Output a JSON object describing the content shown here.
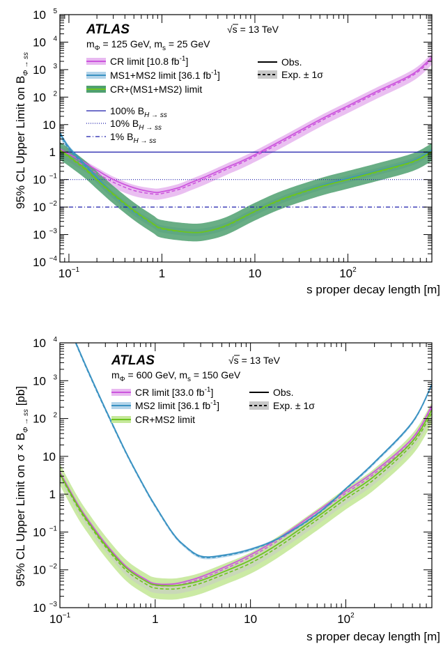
{
  "colors": {
    "cr": "#cc55dd",
    "cr_band": "#e8b8f0",
    "ms": "#3a92c2",
    "ms_band": "#b3d4ea",
    "comb": "#6ec420",
    "comb_band_top": "#4fa070",
    "comb_band_bottom": "#c5e89a",
    "exp_band": "#c8c8c8",
    "ref": "#1a1aaa"
  },
  "top": {
    "atlas": "ATLAS",
    "energy": "√s = 13 TeV",
    "masses": "m",
    "masses_parts": [
      "m",
      "Φ",
      " = 125 GeV, m",
      "s",
      " = 25 GeV"
    ],
    "legend": {
      "cr": "CR limit [10.8 fb",
      "cr_end": "]",
      "ms": "MS1+MS2 limit [36.1 fb",
      "ms_end": "]",
      "comb": "CR+(MS1+MS2) limit",
      "obs": "Obs.",
      "exp": "Exp. ± 1σ",
      "ref100": "100% B",
      "ref10": "10% B",
      "ref1": "1% B",
      "ref_sub": "H → ss"
    },
    "ylabel_main": "95% CL Upper Limit on B",
    "ylabel_sub": "Φ → ss",
    "xlabel": "s proper decay length [m]"
  },
  "bottom": {
    "atlas": "ATLAS",
    "energy": "√s = 13 TeV",
    "masses_parts": [
      "m",
      "Φ",
      " = 600 GeV, m",
      "s",
      " = 150 GeV"
    ],
    "legend": {
      "cr": "CR limit [33.0 fb",
      "cr_end": "]",
      "ms": "MS2 limit [36.1 fb",
      "ms_end": "]",
      "comb": "CR+MS2 limit",
      "obs": "Obs.",
      "exp": "Exp. ± 1σ"
    },
    "ylabel_main": "95% CL Upper Limit on σ × B",
    "ylabel_sub": "Φ → ss",
    "ylabel_end": " [pb]",
    "xlabel": "s proper decay length [m]"
  },
  "chart_data": [
    {
      "type": "line",
      "title": "",
      "xlabel": "s proper decay length [m]",
      "ylabel": "95% CL Upper Limit on B_Φ→ss",
      "x_scale": "log",
      "y_scale": "log",
      "xlim": [
        0.08,
        800
      ],
      "ylim": [
        0.0001,
        100000
      ],
      "x_ticks": [
        {
          "v": 0.1,
          "m": "10",
          "e": "−1"
        },
        {
          "v": 1,
          "m": "1"
        },
        {
          "v": 10,
          "m": "10"
        },
        {
          "v": 100,
          "m": "10",
          "e": "2"
        }
      ],
      "y_ticks": [
        {
          "v": 0.0001,
          "m": "10",
          "e": "−4"
        },
        {
          "v": 0.001,
          "m": "10",
          "e": "−3"
        },
        {
          "v": 0.01,
          "m": "10",
          "e": "−2"
        },
        {
          "v": 0.1,
          "m": "10",
          "e": "−1"
        },
        {
          "v": 1,
          "m": "1"
        },
        {
          "v": 10,
          "m": "10"
        },
        {
          "v": 100,
          "m": "10",
          "e": "2"
        },
        {
          "v": 1000,
          "m": "10",
          "e": "3"
        },
        {
          "v": 10000,
          "m": "10",
          "e": "4"
        },
        {
          "v": 100000,
          "m": "10",
          "e": "5"
        }
      ],
      "reference_lines": [
        {
          "name": "100% B_H→ss",
          "y": 1,
          "style": "solid"
        },
        {
          "name": "10% B_H→ss",
          "y": 0.1,
          "style": "dotted"
        },
        {
          "name": "1% B_H→ss",
          "y": 0.01,
          "style": "dashdot"
        }
      ],
      "series": [
        {
          "name": "CR limit [10.8 fb^-1]",
          "key": "cr",
          "band_factor": 1.6,
          "x": [
            0.08,
            0.1,
            0.15,
            0.2,
            0.3,
            0.5,
            0.8,
            1,
            1.5,
            2,
            3,
            5,
            7,
            10,
            20,
            50,
            100,
            200,
            500,
            800
          ],
          "obs": [
            1.3,
            0.85,
            0.4,
            0.22,
            0.1,
            0.05,
            0.035,
            0.036,
            0.05,
            0.075,
            0.13,
            0.28,
            0.45,
            0.8,
            2.8,
            15,
            48,
            155,
            700,
            2800
          ],
          "exp": [
            1.1,
            0.7,
            0.3,
            0.17,
            0.08,
            0.04,
            0.03,
            0.031,
            0.043,
            0.063,
            0.11,
            0.24,
            0.39,
            0.7,
            2.4,
            13,
            42,
            135,
            620,
            2400
          ]
        },
        {
          "name": "MS1+MS2 limit [36.1 fb^-1]",
          "key": "ms",
          "band_factor": 1.35,
          "x": [
            0.08,
            0.1,
            0.15,
            0.2,
            0.3,
            0.5,
            0.8,
            1,
            2,
            3,
            5,
            10,
            20,
            50,
            100,
            200,
            500,
            800
          ],
          "obs": [
            5,
            1.5,
            0.35,
            0.12,
            0.03,
            0.007,
            0.0025,
            0.0017,
            0.0012,
            0.0013,
            0.0022,
            0.007,
            0.02,
            0.058,
            0.11,
            0.2,
            0.48,
            1.2
          ],
          "exp": [
            4.5,
            1.3,
            0.3,
            0.1,
            0.027,
            0.0065,
            0.0024,
            0.0016,
            0.0012,
            0.0013,
            0.0021,
            0.0068,
            0.019,
            0.055,
            0.105,
            0.19,
            0.45,
            1.1
          ]
        },
        {
          "name": "CR+(MS1+MS2) limit",
          "key": "comb",
          "band_factor": 2.1,
          "x": [
            0.08,
            0.1,
            0.15,
            0.2,
            0.3,
            0.5,
            0.8,
            1,
            2,
            3,
            5,
            10,
            20,
            50,
            100,
            200,
            500,
            800
          ],
          "obs": [
            1.2,
            0.7,
            0.25,
            0.1,
            0.03,
            0.0075,
            0.0025,
            0.0017,
            0.0012,
            0.0013,
            0.0022,
            0.007,
            0.02,
            0.055,
            0.1,
            0.19,
            0.45,
            1.05
          ],
          "exp": [
            1.1,
            0.65,
            0.23,
            0.095,
            0.028,
            0.007,
            0.0024,
            0.0016,
            0.0012,
            0.0013,
            0.0021,
            0.0068,
            0.019,
            0.053,
            0.098,
            0.18,
            0.43,
            1.0
          ]
        }
      ]
    },
    {
      "type": "line",
      "title": "",
      "xlabel": "s proper decay length [m]",
      "ylabel": "95% CL Upper Limit on σ × B_Φ→ss [pb]",
      "x_scale": "log",
      "y_scale": "log",
      "xlim": [
        0.1,
        800
      ],
      "ylim": [
        0.001,
        10000
      ],
      "x_ticks": [
        {
          "v": 0.1,
          "m": "10",
          "e": "−1"
        },
        {
          "v": 1,
          "m": "1"
        },
        {
          "v": 10,
          "m": "10"
        },
        {
          "v": 100,
          "m": "10",
          "e": "2"
        }
      ],
      "y_ticks": [
        {
          "v": 0.001,
          "m": "10",
          "e": "−3"
        },
        {
          "v": 0.01,
          "m": "10",
          "e": "−2"
        },
        {
          "v": 0.1,
          "m": "10",
          "e": "−1"
        },
        {
          "v": 1,
          "m": "1"
        },
        {
          "v": 10,
          "m": "10"
        },
        {
          "v": 100,
          "m": "10",
          "e": "2"
        },
        {
          "v": 1000,
          "m": "10",
          "e": "3"
        },
        {
          "v": 10000,
          "m": "10",
          "e": "4"
        }
      ],
      "reference_lines": [],
      "series": [
        {
          "name": "CR limit [33.0 fb^-1]",
          "key": "cr",
          "band_factor": 1.25,
          "x": [
            0.1,
            0.15,
            0.2,
            0.3,
            0.5,
            0.8,
            1,
            1.5,
            2,
            3,
            5,
            10,
            20,
            50,
            100,
            200,
            500,
            800
          ],
          "obs": [
            3.8,
            0.6,
            0.2,
            0.05,
            0.012,
            0.0055,
            0.0043,
            0.0042,
            0.0048,
            0.0065,
            0.011,
            0.025,
            0.07,
            0.35,
            1.2,
            4,
            30,
            220
          ],
          "exp": [
            3.6,
            0.55,
            0.18,
            0.045,
            0.011,
            0.005,
            0.0039,
            0.0038,
            0.0043,
            0.0058,
            0.0098,
            0.022,
            0.062,
            0.31,
            1.05,
            3.5,
            26,
            190
          ]
        },
        {
          "name": "MS2 limit [36.1 fb^-1]",
          "key": "ms",
          "band_factor": 1.1,
          "x": [
            0.14,
            0.15,
            0.2,
            0.3,
            0.5,
            0.8,
            1,
            1.5,
            2,
            3,
            5,
            10,
            20,
            50,
            100,
            200,
            500,
            800
          ],
          "obs": [
            14000,
            9000,
            1700,
            180,
            12,
            1.3,
            0.5,
            0.1,
            0.045,
            0.023,
            0.024,
            0.035,
            0.07,
            0.3,
            1.4,
            7,
            80,
            800
          ],
          "exp": [
            13000,
            8500,
            1600,
            170,
            11.5,
            1.25,
            0.48,
            0.097,
            0.044,
            0.022,
            0.023,
            0.034,
            0.068,
            0.29,
            1.35,
            6.8,
            78,
            780
          ]
        },
        {
          "name": "CR+MS2 limit",
          "key": "comb",
          "band_factor": 1.9,
          "x": [
            0.1,
            0.15,
            0.2,
            0.3,
            0.5,
            0.8,
            1,
            1.5,
            2,
            3,
            5,
            10,
            20,
            50,
            100,
            200,
            500,
            800
          ],
          "obs": [
            3.5,
            0.55,
            0.18,
            0.045,
            0.011,
            0.005,
            0.004,
            0.0038,
            0.0041,
            0.0052,
            0.0085,
            0.018,
            0.05,
            0.25,
            0.9,
            3,
            25,
            170
          ],
          "exp": [
            3.3,
            0.5,
            0.165,
            0.041,
            0.0095,
            0.0042,
            0.0033,
            0.0031,
            0.0034,
            0.0044,
            0.0072,
            0.015,
            0.042,
            0.21,
            0.75,
            2.5,
            21,
            140
          ]
        }
      ]
    }
  ]
}
